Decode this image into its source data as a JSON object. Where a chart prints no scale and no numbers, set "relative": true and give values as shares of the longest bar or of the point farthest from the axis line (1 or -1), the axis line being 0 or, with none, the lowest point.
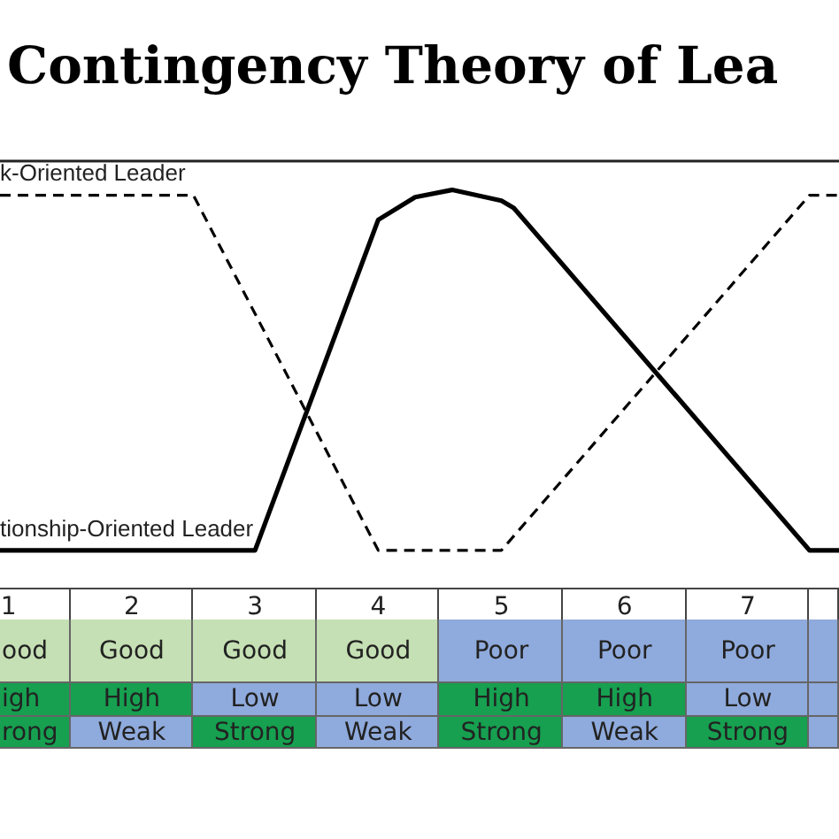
{
  "chart_data": {
    "type": "line",
    "title": "Contingency Theory of Lea",
    "relative": true,
    "marker": "none",
    "xlim": [
      0.93,
      7.74
    ],
    "xticks": [
      1,
      2,
      3,
      4,
      5,
      6,
      7
    ],
    "series": [
      {
        "name": "k-Oriented Leader",
        "color": "#000000",
        "line_style": "dashed",
        "x": [
          0.93,
          2.5,
          4.0,
          5.0,
          7.5,
          7.74
        ],
        "values": [
          0.985,
          0.985,
          0,
          0,
          0.985,
          0.985
        ]
      },
      {
        "name": "tionship-Oriented Leader",
        "color": "#000000",
        "line_style": "solid",
        "x": [
          0.93,
          3.0,
          4.0,
          4.3,
          4.6,
          5.0,
          5.1,
          7.5,
          7.74
        ],
        "values": [
          0,
          0,
          0.917,
          0.98,
          1,
          0.97,
          0.95,
          0,
          0
        ]
      }
    ],
    "annotations": [
      "ood",
      "Good",
      "Good",
      "Good",
      "Poor",
      "Poor",
      "Poor",
      "igh",
      "High",
      "Low",
      "Low",
      "High",
      "High",
      "Low",
      "rong",
      "Weak",
      "Strong",
      "Weak",
      "Strong",
      "Weak",
      "Strong"
    ]
  }
}
